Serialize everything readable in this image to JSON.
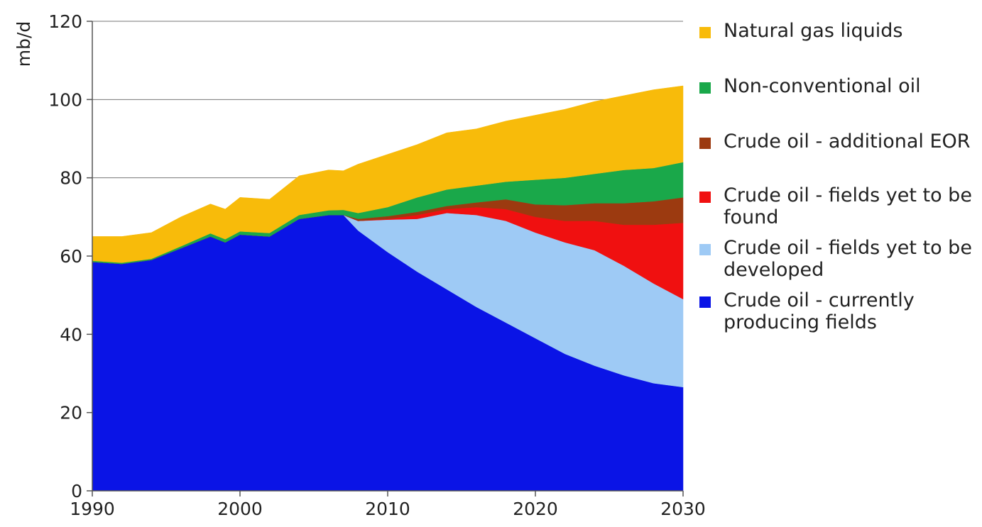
{
  "chart_data": {
    "type": "area",
    "stacked": true,
    "xlabel": "",
    "ylabel": "mb/d",
    "xlim": [
      1990,
      2030
    ],
    "ylim": [
      0,
      120
    ],
    "xticks": [
      "1990",
      "2000",
      "2010",
      "2020",
      "2030"
    ],
    "yticks": [
      "0",
      "20",
      "40",
      "60",
      "80",
      "100",
      "120"
    ],
    "grid": "horizontal",
    "legend_placement": "right",
    "x": [
      1990,
      1992,
      1994,
      1996,
      1998,
      1999,
      2000,
      2002,
      2004,
      2006,
      2007,
      2008,
      2010,
      2012,
      2014,
      2016,
      2018,
      2020,
      2022,
      2024,
      2026,
      2028,
      2030
    ],
    "series": [
      {
        "name": "Crude oil - currently producing fields",
        "color": "#0a14e6",
        "values": [
          58.5,
          58,
          59,
          62,
          65,
          63.5,
          65.5,
          65,
          69.5,
          70.5,
          70.5,
          66.5,
          61,
          56,
          51.5,
          47,
          43,
          39,
          35,
          32,
          29.5,
          27.5,
          26.5
        ]
      },
      {
        "name": "Crude oil - fields yet to be developed",
        "color": "#9ecaf5",
        "values": [
          0,
          0,
          0,
          0,
          0,
          0,
          0,
          0,
          0,
          0,
          0,
          2.5,
          8.3,
          13.5,
          19.5,
          23.5,
          26,
          27,
          28.5,
          29.5,
          28,
          25.5,
          22.5
        ]
      },
      {
        "name": "Crude oil - fields yet to be\nfound",
        "color": "#f01010",
        "values": [
          0,
          0,
          0,
          0,
          0,
          0,
          0,
          0,
          0,
          0,
          0,
          0,
          0.2,
          1,
          1,
          2,
          3,
          4,
          5.5,
          7.5,
          10.5,
          15,
          19.5
        ]
      },
      {
        "name": "Crude oil - additional EOR",
        "color": "#9c3a10",
        "values": [
          0,
          0,
          0,
          0,
          0,
          0,
          0,
          0,
          0,
          0,
          0,
          0.5,
          0.7,
          0.8,
          0.8,
          1.2,
          2.5,
          3.2,
          4,
          4.5,
          5.5,
          6,
          6.5
        ]
      },
      {
        "name": "Non-conventional oil",
        "color": "#1aa84a",
        "values": [
          0.3,
          0.3,
          0.3,
          0.5,
          0.8,
          0.8,
          0.8,
          0.9,
          1,
          1.2,
          1.3,
          1.5,
          2.3,
          3.7,
          4.2,
          4.3,
          4.5,
          6.3,
          7,
          7.5,
          8.5,
          8.5,
          9
        ]
      },
      {
        "name": "Natural gas liquids",
        "color": "#f8bb0a",
        "values": [
          6.2,
          6.7,
          6.7,
          7.5,
          7.5,
          7.7,
          8.7,
          8.6,
          10,
          10.3,
          10,
          12.5,
          13.5,
          13.5,
          14.5,
          14.5,
          15.5,
          16.5,
          17.5,
          18.5,
          19,
          20,
          19.5
        ]
      }
    ]
  },
  "legend_order": [
    5,
    4,
    3,
    2,
    1,
    0
  ]
}
